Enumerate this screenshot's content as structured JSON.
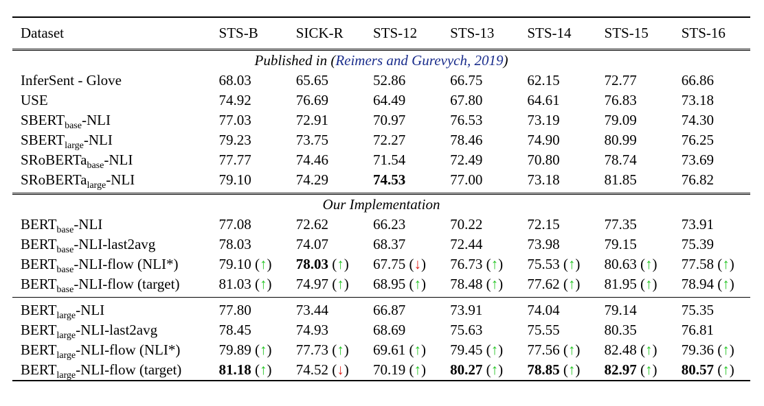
{
  "columns": [
    "Dataset",
    "STS-B",
    "SICK-R",
    "STS-12",
    "STS-13",
    "STS-14",
    "STS-15",
    "STS-16"
  ],
  "section1": {
    "prefix": "Published in (",
    "cite": "Reimers and Gurevych, 2019",
    "suffix": ")"
  },
  "section2": {
    "title": "Our Implementation"
  },
  "published_rows": [
    {
      "m": "InferSent - Glove",
      "v": [
        "68.03",
        "65.65",
        "52.86",
        "66.75",
        "62.15",
        "72.77",
        "66.86"
      ]
    },
    {
      "m": "USE",
      "v": [
        "74.92",
        "76.69",
        "64.49",
        "67.80",
        "64.61",
        "76.83",
        "73.18"
      ]
    },
    {
      "m": "SBERT",
      "s": "base",
      "p": "-NLI",
      "v": [
        "77.03",
        "72.91",
        "70.97",
        "76.53",
        "73.19",
        "79.09",
        "74.30"
      ]
    },
    {
      "m": "SBERT",
      "s": "large",
      "p": "-NLI",
      "v": [
        "79.23",
        "73.75",
        "72.27",
        "78.46",
        "74.90",
        "80.99",
        "76.25"
      ]
    },
    {
      "m": "SRoBERTa",
      "s": "base",
      "p": "-NLI",
      "v": [
        "77.77",
        "74.46",
        "71.54",
        "72.49",
        "70.80",
        "78.74",
        "73.69"
      ]
    },
    {
      "m": "SRoBERTa",
      "s": "large",
      "p": "-NLI",
      "v": [
        "79.10",
        "74.29",
        "74.53",
        "77.00",
        "73.18",
        "81.85",
        "76.82"
      ],
      "bold": [
        2
      ]
    }
  ],
  "base_rows": [
    {
      "m": "BERT",
      "s": "base",
      "p": "-NLI",
      "v": [
        "77.08",
        "72.62",
        "66.23",
        "70.22",
        "72.15",
        "77.35",
        "73.91"
      ]
    },
    {
      "m": "BERT",
      "s": "base",
      "p": "-NLI-last2avg",
      "v": [
        "78.03",
        "74.07",
        "68.37",
        "72.44",
        "73.98",
        "79.15",
        "75.39"
      ]
    },
    {
      "m": "BERT",
      "s": "base",
      "p": "-NLI-flow (NLI*)",
      "v": [
        "79.10",
        "78.03",
        "67.75",
        "76.73",
        "75.53",
        "80.63",
        "77.58"
      ],
      "arrows": [
        "up",
        "up",
        "down",
        "up",
        "up",
        "up",
        "up"
      ],
      "bold": [
        1
      ]
    },
    {
      "m": "BERT",
      "s": "base",
      "p": "-NLI-flow (target)",
      "v": [
        "81.03",
        "74.97",
        "68.95",
        "78.48",
        "77.62",
        "81.95",
        "78.94"
      ],
      "arrows": [
        "up",
        "up",
        "up",
        "up",
        "up",
        "up",
        "up"
      ]
    }
  ],
  "large_rows": [
    {
      "m": "BERT",
      "s": "large",
      "p": "-NLI",
      "v": [
        "77.80",
        "73.44",
        "66.87",
        "73.91",
        "74.04",
        "79.14",
        "75.35"
      ]
    },
    {
      "m": "BERT",
      "s": "large",
      "p": "-NLI-last2avg",
      "v": [
        "78.45",
        "74.93",
        "68.69",
        "75.63",
        "75.55",
        "80.35",
        "76.81"
      ]
    },
    {
      "m": "BERT",
      "s": "large",
      "p": "-NLI-flow (NLI*)",
      "v": [
        "79.89",
        "77.73",
        "69.61",
        "79.45",
        "77.56",
        "82.48",
        "79.36"
      ],
      "arrows": [
        "up",
        "up",
        "up",
        "up",
        "up",
        "up",
        "up"
      ]
    },
    {
      "m": "BERT",
      "s": "large",
      "p": "-NLI-flow (target)",
      "v": [
        "81.18",
        "74.52",
        "70.19",
        "80.27",
        "78.85",
        "82.97",
        "80.57"
      ],
      "arrows": [
        "up",
        "down",
        "up",
        "up",
        "up",
        "up",
        "up"
      ],
      "bold": [
        0,
        3,
        4,
        5,
        6
      ]
    }
  ],
  "arrow_glyphs": {
    "up": "↑",
    "down": "↓"
  },
  "colors": {
    "up": "#22c422",
    "down": "#e0211b",
    "cite": "#1a2d8c"
  }
}
